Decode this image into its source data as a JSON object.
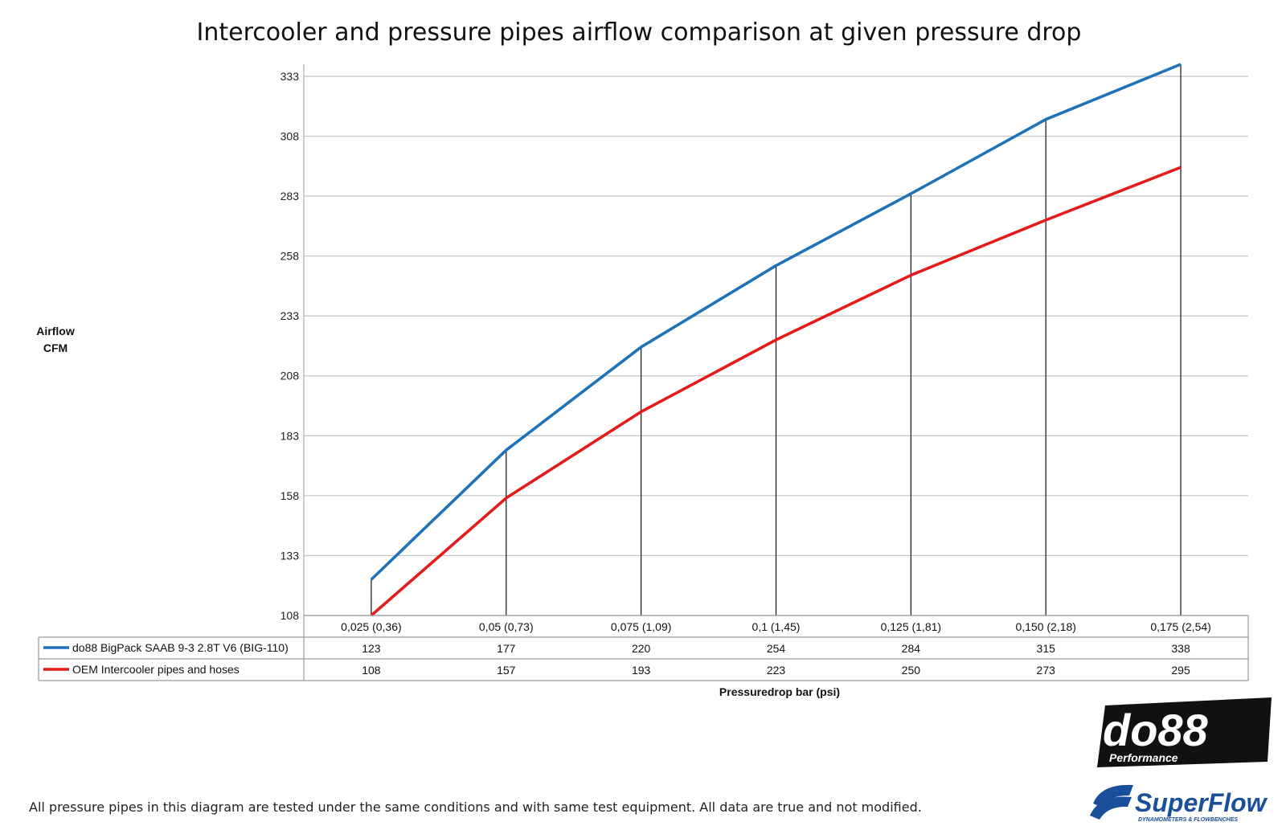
{
  "chart_data": {
    "type": "line",
    "title": "Intercooler and pressure pipes airflow comparison at given pressure drop",
    "ylabel": [
      "Airflow",
      "CFM"
    ],
    "xlabel": "Pressuredrop bar (psi)",
    "y_ticks": [
      108,
      133,
      158,
      183,
      208,
      233,
      258,
      283,
      308,
      333
    ],
    "ylim": [
      108,
      338
    ],
    "grid": "horizontal",
    "legend": "data-table-below",
    "categories": [
      "0,025 (0,36)",
      "0,05 (0,73)",
      "0,075 (1,09)",
      "0,1 (1,45)",
      "0,125 (1,81)",
      "0,150 (2,18)",
      "0,175 (2,54)"
    ],
    "series": [
      {
        "name": "do88 BigPack SAAB 9-3 2.8T V6 (BIG-110)",
        "color": "#1f72b8",
        "values": [
          123,
          177,
          220,
          254,
          284,
          315,
          338
        ]
      },
      {
        "name": "OEM Intercooler pipes and hoses",
        "color": "#e31b1b",
        "values": [
          108,
          157,
          193,
          223,
          250,
          273,
          295
        ]
      }
    ]
  },
  "footer_note": "All pressure pipes in this diagram are tested under the same conditions and with same test equipment. All data are true and not modified.",
  "logos": {
    "do88": {
      "main": "do88",
      "sub": "Performance"
    },
    "superflow": {
      "main": "SuperFlow",
      "sub": "DYNAMOMETERS & FLOWBENCHES"
    }
  }
}
